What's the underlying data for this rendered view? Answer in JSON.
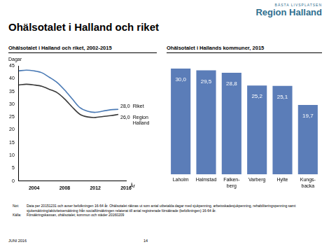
{
  "header": {
    "title": "Ohälsotalet i Halland och riket",
    "logo_tagline": "BÄSTA LIVSPLATSEN",
    "logo_name": "Region Halland"
  },
  "chart_data": [
    {
      "type": "line",
      "title": "Ohälsotalet  i Halland och riket, 2002-2015",
      "xlabel": "År",
      "ylabel": "Dagar",
      "x": [
        2002,
        2003,
        2004,
        2005,
        2006,
        2007,
        2008,
        2009,
        2010,
        2011,
        2012,
        2013,
        2014,
        2015
      ],
      "series": [
        {
          "name": "Riket",
          "color": "#4a7ab5",
          "values": [
            43.0,
            43.3,
            43.0,
            42.3,
            40.5,
            38.5,
            35.5,
            32.0,
            28.6,
            27.2,
            26.8,
            27.3,
            27.8,
            28.0
          ],
          "value_labels": [
            null,
            null,
            null,
            null,
            null,
            null,
            null,
            null,
            null,
            null,
            null,
            null,
            null,
            "28,0"
          ]
        },
        {
          "name": "Region Halland",
          "color": "#3a3a3a",
          "values": [
            37.5,
            37.8,
            37.5,
            37.0,
            35.8,
            34.5,
            32.0,
            28.8,
            26.0,
            25.0,
            24.8,
            25.2,
            25.5,
            26.0
          ],
          "value_labels": [
            null,
            null,
            null,
            null,
            null,
            null,
            null,
            null,
            null,
            null,
            null,
            null,
            null,
            "26,0"
          ]
        }
      ],
      "xlim": [
        2002,
        2016
      ],
      "xticks": [
        2004,
        2008,
        2012,
        2016
      ],
      "ylim": [
        0,
        45
      ],
      "yticks": [
        0,
        5,
        10,
        15,
        20,
        25,
        30,
        35,
        40,
        45
      ],
      "grid": false,
      "data_labels": true
    },
    {
      "type": "bar",
      "title": "Ohälsotalet i Hallands kommuner, 2015",
      "categories": [
        "Laholm",
        "Halmstad",
        "Falken-\nberg",
        "Varberg",
        "Hylte",
        "Kungs-\nbacka"
      ],
      "values": [
        30.0,
        29.5,
        28.8,
        25.2,
        25.1,
        19.7
      ],
      "value_labels": [
        "30,0",
        "29,5",
        "28,8",
        "25,2",
        "25,1",
        "19,7"
      ],
      "color": "#5b7db8",
      "ylim": [
        0,
        30
      ],
      "grid": false,
      "data_labels": true,
      "tick_labels": "x"
    }
  ],
  "notes": {
    "not_label": "Not:",
    "not": "Data per 20151231 och avser befolkningen 16-64 år. Ohälsotalet räknas ut som antal utbetalda dagar med sjukpenning, arbetsskadesjukpenning, rehabiliteringspenning samt sjukersättning/aktivitetsersättning från socialförsäkringen relaterat till antal registrerade försäkrade (befolkningen) 16-64 år.",
    "source_label": "Källa:",
    "source": "Försäkringskassan, ohälsotalet; kommun och städer 20160209"
  },
  "footer": {
    "date": "JUNI 2016",
    "page": "14"
  }
}
